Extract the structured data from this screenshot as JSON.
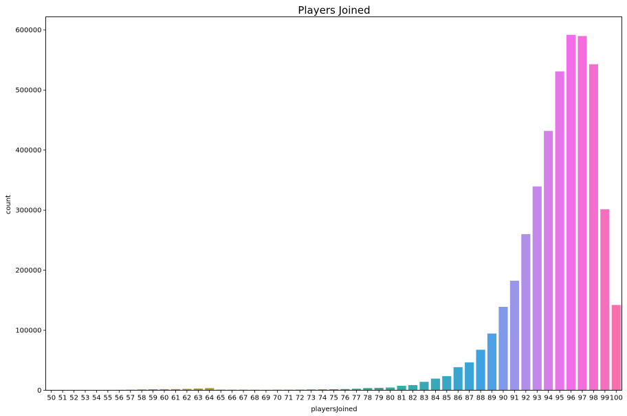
{
  "chart_data": {
    "type": "bar",
    "title": "Players Joined",
    "xlabel": "playersJoined",
    "ylabel": "count",
    "ylim": [
      0,
      622000
    ],
    "yticks": [
      0,
      100000,
      200000,
      300000,
      400000,
      500000,
      600000
    ],
    "grid": false,
    "categories": [
      "50",
      "51",
      "52",
      "53",
      "54",
      "55",
      "56",
      "57",
      "58",
      "59",
      "60",
      "61",
      "62",
      "63",
      "64",
      "65",
      "66",
      "67",
      "68",
      "69",
      "70",
      "71",
      "72",
      "73",
      "74",
      "75",
      "76",
      "77",
      "78",
      "79",
      "80",
      "81",
      "82",
      "83",
      "84",
      "85",
      "86",
      "87",
      "88",
      "89",
      "90",
      "91",
      "92",
      "93",
      "94",
      "95",
      "96",
      "97",
      "98",
      "99",
      "100"
    ],
    "values": [
      500,
      300,
      400,
      300,
      500,
      600,
      700,
      900,
      1400,
      1700,
      1800,
      1900,
      2300,
      2900,
      3600,
      1000,
      900,
      900,
      800,
      700,
      900,
      900,
      1000,
      1300,
      1500,
      1700,
      2000,
      2500,
      3700,
      4000,
      4600,
      7500,
      8600,
      14000,
      19400,
      23500,
      38500,
      46500,
      67500,
      94500,
      139000,
      182500,
      260000,
      339500,
      432000,
      531000,
      592000,
      590000,
      543000,
      301500,
      142000
    ],
    "colors": [
      "#f77189",
      "#f7737c",
      "#f7756c",
      "#f77754",
      "#f67a36",
      "#ec7f32",
      "#e38431",
      "#db8831",
      "#d38c31",
      "#cc8f31",
      "#c59231",
      "#be9531",
      "#b79731",
      "#b09a31",
      "#a99c31",
      "#a29f31",
      "#9aa131",
      "#91a431",
      "#87a631",
      "#7ba931",
      "#6eab31",
      "#5cae31",
      "#40b131",
      "#32b14e",
      "#33b064",
      "#34af72",
      "#34ae7e",
      "#35ad88",
      "#35ad90",
      "#36ac98",
      "#36ab9f",
      "#37aba6",
      "#37aaad",
      "#38a9b4",
      "#38a8bb",
      "#39a7c3",
      "#3aa6cb",
      "#3ba4d5",
      "#3ca2e1",
      "#50a0e9",
      "#7e9ae9",
      "#9a95e9",
      "#b08fe9",
      "#c388e9",
      "#d57fe9",
      "#e775e9",
      "#f36deb",
      "#f46ddd",
      "#f46ece",
      "#f56fbd",
      "#f670ab"
    ]
  }
}
